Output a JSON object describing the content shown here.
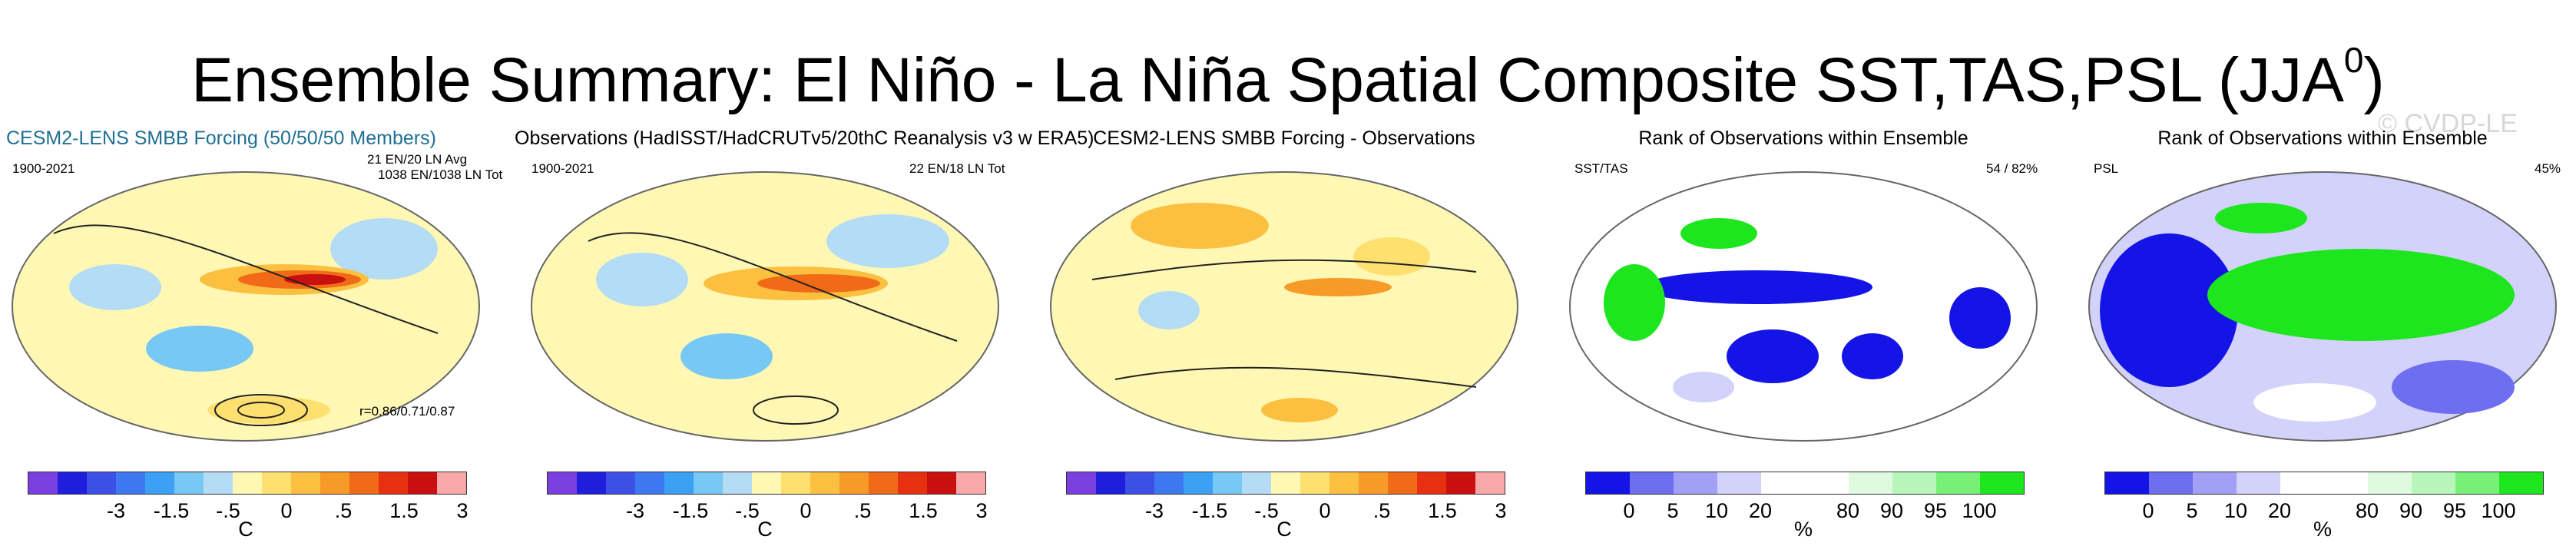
{
  "title": {
    "main": "Ensemble Summary: El Niño - La Niña Spatial Composite SST,TAS,PSL (JJA",
    "sup": "0",
    "close": ")"
  },
  "watermark": "© CVDP-LE",
  "colors": {
    "temp_scale": [
      "#7b3fe0",
      "#1e1edc",
      "#3c50e6",
      "#3d78f0",
      "#3ca0f5",
      "#78c8f5",
      "#b4dcf5",
      "#fff8b4",
      "#fde070",
      "#fcc040",
      "#f79a28",
      "#f06a18",
      "#e63010",
      "#c81010",
      "#f8a8a8"
    ],
    "rank_scale": [
      "#1414e6",
      "#6e6ef0",
      "#a0a0f5",
      "#d2d2fa",
      "#ffffff",
      "#ffffff",
      "#e0fae0",
      "#b8f5b8",
      "#78f078",
      "#1ee61e"
    ]
  },
  "panels": [
    {
      "title": "CESM2-LENS SMBB Forcing (50/50/50 Members)",
      "left_label": "1900-2021",
      "right_top": "21 EN/20 LN Avg",
      "right_bottom": "1038 EN/1038 LN Tot",
      "corner": "r=0.86/0.71/0.87",
      "kind": "temp"
    },
    {
      "title": "Observations (HadISST/HadCRUTv5/20thC Reanalysis v3 w ERA5)",
      "left_label": "1900-2021",
      "right_top": "22 EN/18 LN Tot",
      "kind": "temp"
    },
    {
      "title": "CESM2-LENS SMBB Forcing - Observations",
      "kind": "temp"
    },
    {
      "title": "Rank of Observations within Ensemble",
      "left_label": "SST/TAS",
      "right_top": "54 /  82%",
      "kind": "rank"
    },
    {
      "title": "Rank of Observations within Ensemble",
      "left_label": "PSL",
      "right_top": "45%",
      "kind": "rank"
    }
  ],
  "temp_ticks": [
    "-3",
    "-1.5",
    "-.5",
    "0",
    ".5",
    "1.5",
    "3"
  ],
  "temp_unit": "C",
  "rank_ticks": [
    "0",
    "5",
    "10",
    "20",
    "80",
    "90",
    "95",
    "100"
  ],
  "rank_unit": "%"
}
